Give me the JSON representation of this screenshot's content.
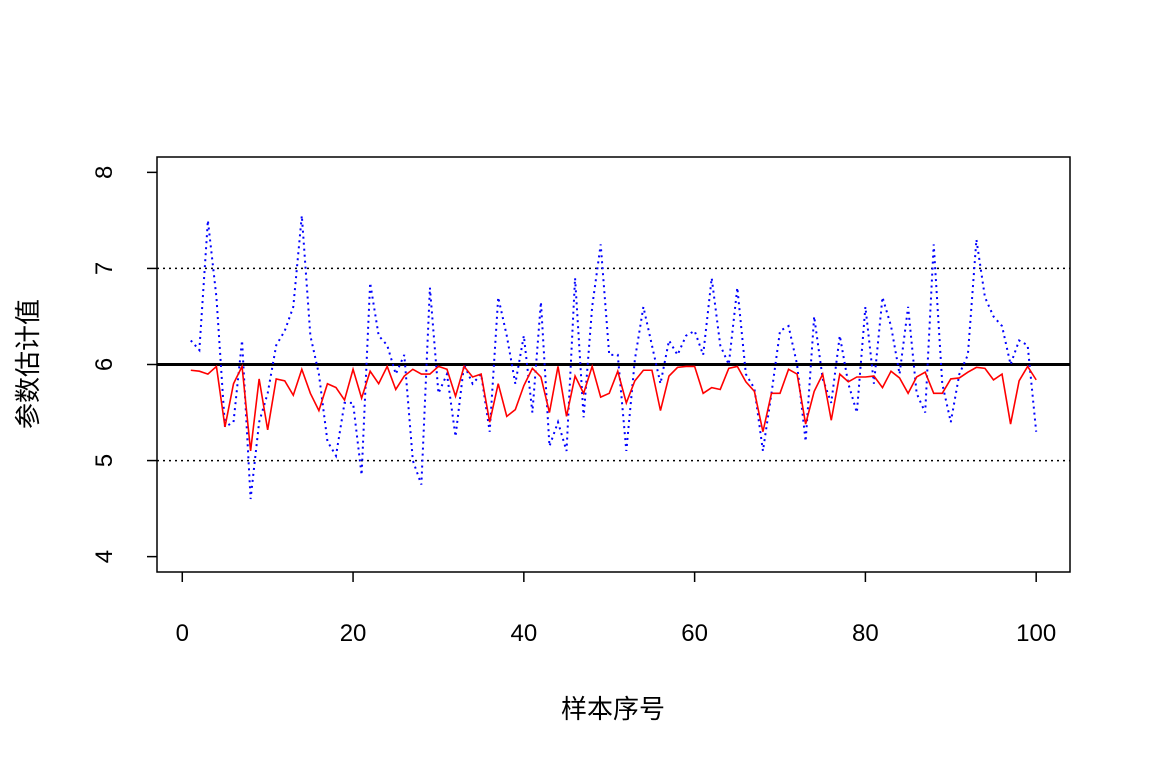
{
  "chart_data": {
    "type": "line",
    "xlabel": "样本序号",
    "ylabel": "参数估计值",
    "x": [
      1,
      2,
      3,
      4,
      5,
      6,
      7,
      8,
      9,
      10,
      11,
      12,
      13,
      14,
      15,
      16,
      17,
      18,
      19,
      20,
      21,
      22,
      23,
      24,
      25,
      26,
      27,
      28,
      29,
      30,
      31,
      32,
      33,
      34,
      35,
      36,
      37,
      38,
      39,
      40,
      41,
      42,
      43,
      44,
      45,
      46,
      47,
      48,
      49,
      50,
      51,
      52,
      53,
      54,
      55,
      56,
      57,
      58,
      59,
      60,
      61,
      62,
      63,
      64,
      65,
      66,
      67,
      68,
      69,
      70,
      71,
      72,
      73,
      74,
      75,
      76,
      77,
      78,
      79,
      80,
      81,
      82,
      83,
      84,
      85,
      86,
      87,
      88,
      89,
      90,
      91,
      92,
      93,
      94,
      95,
      96,
      97,
      98,
      99,
      100
    ],
    "series": [
      {
        "color": "#0000ff",
        "dash": "dotted",
        "values": [
          6.25,
          6.15,
          7.5,
          6.7,
          5.35,
          5.4,
          6.25,
          4.6,
          5.4,
          5.7,
          6.2,
          6.35,
          6.6,
          7.55,
          6.3,
          5.9,
          5.2,
          5.05,
          5.6,
          5.6,
          4.85,
          6.85,
          6.3,
          6.2,
          5.9,
          6.1,
          5.0,
          4.75,
          6.8,
          5.7,
          5.9,
          5.25,
          6.0,
          5.8,
          5.9,
          5.3,
          6.7,
          6.3,
          5.8,
          6.3,
          5.5,
          6.65,
          5.15,
          5.4,
          5.1,
          6.9,
          5.45,
          6.6,
          7.25,
          6.1,
          6.1,
          5.1,
          6.05,
          6.6,
          6.2,
          5.8,
          6.25,
          6.1,
          6.3,
          6.35,
          6.1,
          6.9,
          6.2,
          6.0,
          6.8,
          5.9,
          5.75,
          5.1,
          5.7,
          6.35,
          6.4,
          6.0,
          5.2,
          6.5,
          5.85,
          5.6,
          6.3,
          5.8,
          5.5,
          6.6,
          5.8,
          6.7,
          6.4,
          5.9,
          6.6,
          5.7,
          5.5,
          7.25,
          5.8,
          5.4,
          5.9,
          6.1,
          7.3,
          6.7,
          6.5,
          6.4,
          6.0,
          6.25,
          6.2,
          5.3
        ]
      },
      {
        "color": "#ff0000",
        "dash": "solid",
        "values": [
          5.94,
          5.93,
          5.9,
          5.98,
          5.35,
          5.8,
          5.98,
          5.1,
          5.85,
          5.32,
          5.85,
          5.83,
          5.68,
          5.95,
          5.7,
          5.52,
          5.8,
          5.76,
          5.63,
          5.95,
          5.65,
          5.93,
          5.8,
          5.98,
          5.74,
          5.88,
          5.95,
          5.9,
          5.9,
          5.98,
          5.95,
          5.67,
          5.98,
          5.87,
          5.9,
          5.4,
          5.8,
          5.46,
          5.53,
          5.78,
          5.96,
          5.87,
          5.5,
          5.98,
          5.46,
          5.88,
          5.7,
          5.98,
          5.66,
          5.7,
          5.93,
          5.6,
          5.83,
          5.94,
          5.94,
          5.52,
          5.88,
          5.97,
          5.98,
          5.98,
          5.7,
          5.76,
          5.74,
          5.96,
          5.98,
          5.82,
          5.72,
          5.3,
          5.7,
          5.7,
          5.95,
          5.9,
          5.38,
          5.72,
          5.9,
          5.42,
          5.9,
          5.82,
          5.87,
          5.87,
          5.88,
          5.76,
          5.93,
          5.86,
          5.7,
          5.87,
          5.92,
          5.7,
          5.7,
          5.85,
          5.86,
          5.92,
          5.97,
          5.96,
          5.84,
          5.9,
          5.38,
          5.83,
          5.98,
          5.84
        ]
      }
    ],
    "hlines": [
      {
        "value": 6,
        "color": "#000000",
        "dash": "solid",
        "width": 3
      },
      {
        "value": 7,
        "color": "#000000",
        "dash": "dotted",
        "width": 1.5
      },
      {
        "value": 5,
        "color": "#000000",
        "dash": "dotted",
        "width": 1.5
      }
    ],
    "xlim": [
      -2.96,
      103.96
    ],
    "xticks": [
      0,
      20,
      40,
      60,
      80,
      100
    ],
    "ylim": [
      3.84,
      8.16
    ],
    "yticks": [
      4,
      5,
      6,
      7,
      8
    ]
  }
}
